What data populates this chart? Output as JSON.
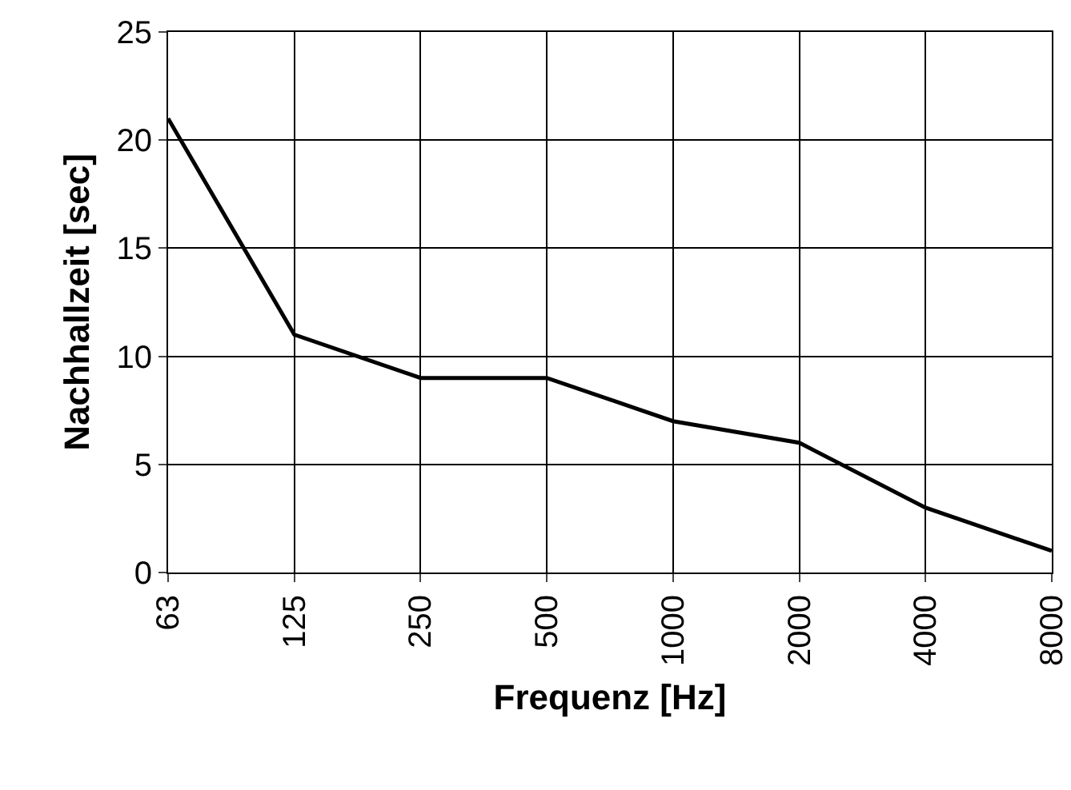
{
  "chart_data": {
    "type": "line",
    "xlabel": "Frequenz [Hz]",
    "ylabel": "Nachhallzeit [sec]",
    "categories": [
      "63",
      "125",
      "250",
      "500",
      "1000",
      "2000",
      "4000",
      "8000"
    ],
    "series": [
      {
        "color": "#000000",
        "values": [
          21,
          11,
          9,
          9,
          7,
          6,
          3,
          1
        ]
      }
    ],
    "ylim": [
      0,
      25
    ],
    "yticks": [
      0,
      5,
      10,
      15,
      20,
      25
    ],
    "grid": true,
    "marker": "none",
    "line_style": "solid"
  }
}
